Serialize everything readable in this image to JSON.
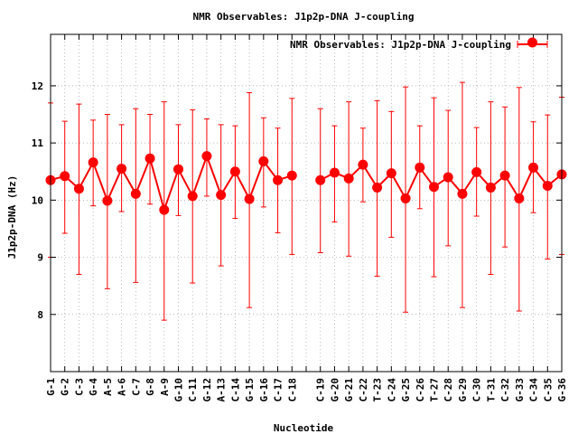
{
  "colors": {
    "series": "#ff0000",
    "axis": "#000000",
    "grid": "#a0a0a0",
    "background": "#ffffff"
  },
  "chart_data": {
    "type": "line",
    "title": "NMR Observables: J1p2p-DNA J-coupling",
    "xlabel": "Nucleotide",
    "ylabel": "J1p2p-DNA (Hz)",
    "ylim": [
      7,
      12.9
    ],
    "yticks": [
      8,
      9,
      10,
      11,
      12
    ],
    "grid": true,
    "legend_position": "top-right",
    "legend": [
      "NMR Observables: J1p2p-DNA J-coupling"
    ],
    "categories": [
      "G-1",
      "G-2",
      "C-3",
      "G-4",
      "A-5",
      "A-6",
      "C-7",
      "G-8",
      "A-9",
      "G-10",
      "C-11",
      "G-12",
      "A-13",
      "C-14",
      "G-15",
      "G-16",
      "C-17",
      "C-18",
      "",
      "C-19",
      "G-20",
      "G-21",
      "C-22",
      "T-23",
      "C-24",
      "G-25",
      "C-26",
      "T-27",
      "C-28",
      "G-29",
      "C-30",
      "T-31",
      "C-32",
      "G-33",
      "C-34",
      "C-35",
      "G-36"
    ],
    "series": [
      {
        "name": "NMR Observables: J1p2p-DNA J-coupling",
        "values": [
          10.35,
          10.42,
          10.2,
          10.66,
          9.99,
          10.55,
          10.11,
          10.73,
          9.83,
          10.54,
          10.07,
          10.77,
          10.09,
          10.5,
          10.02,
          10.68,
          10.35,
          10.43,
          null,
          10.35,
          10.48,
          10.38,
          10.62,
          10.22,
          10.47,
          10.03,
          10.57,
          10.23,
          10.4,
          10.11,
          10.49,
          10.22,
          10.43,
          10.03,
          10.57,
          10.25,
          10.45
        ],
        "err_low": [
          9.0,
          9.42,
          8.7,
          9.9,
          8.45,
          9.8,
          8.56,
          9.93,
          7.9,
          9.73,
          8.55,
          10.07,
          8.85,
          9.68,
          8.12,
          9.88,
          9.43,
          9.05,
          null,
          9.08,
          9.62,
          9.02,
          9.97,
          8.67,
          9.35,
          8.04,
          9.85,
          8.66,
          9.2,
          8.12,
          9.72,
          8.7,
          9.18,
          8.06,
          9.78,
          8.97,
          9.05
        ],
        "err_high": [
          11.7,
          11.38,
          11.68,
          11.4,
          11.5,
          11.32,
          11.6,
          11.5,
          11.72,
          11.32,
          11.58,
          11.42,
          11.32,
          11.3,
          11.88,
          11.44,
          11.26,
          11.78,
          null,
          11.6,
          11.3,
          11.72,
          11.26,
          11.74,
          11.55,
          11.98,
          11.3,
          11.79,
          11.57,
          12.06,
          11.27,
          11.72,
          11.63,
          11.97,
          11.37,
          11.49,
          11.8
        ]
      }
    ]
  }
}
